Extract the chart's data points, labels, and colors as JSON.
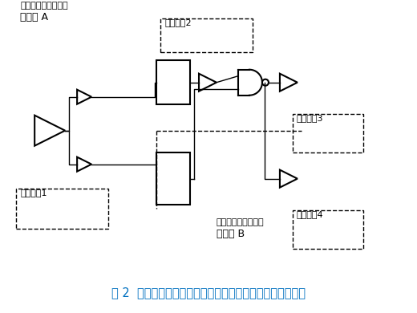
{
  "title": "图 2  同一个标准单元在不同路径不同深度有不同的老化条件",
  "title_color": "#0070C0",
  "bg_color": "#ffffff",
  "label_voltage_A": "电压域 A",
  "label_voltage_A2": "（更高电压、温度）",
  "label_voltage_B": "电压域 B",
  "label_voltage_B2": "（更低电压、温度）",
  "label_aging1": "老化条件1",
  "label_aging2": "老化条件2",
  "label_aging3": "老化条件3",
  "label_aging4": "老化条件4"
}
